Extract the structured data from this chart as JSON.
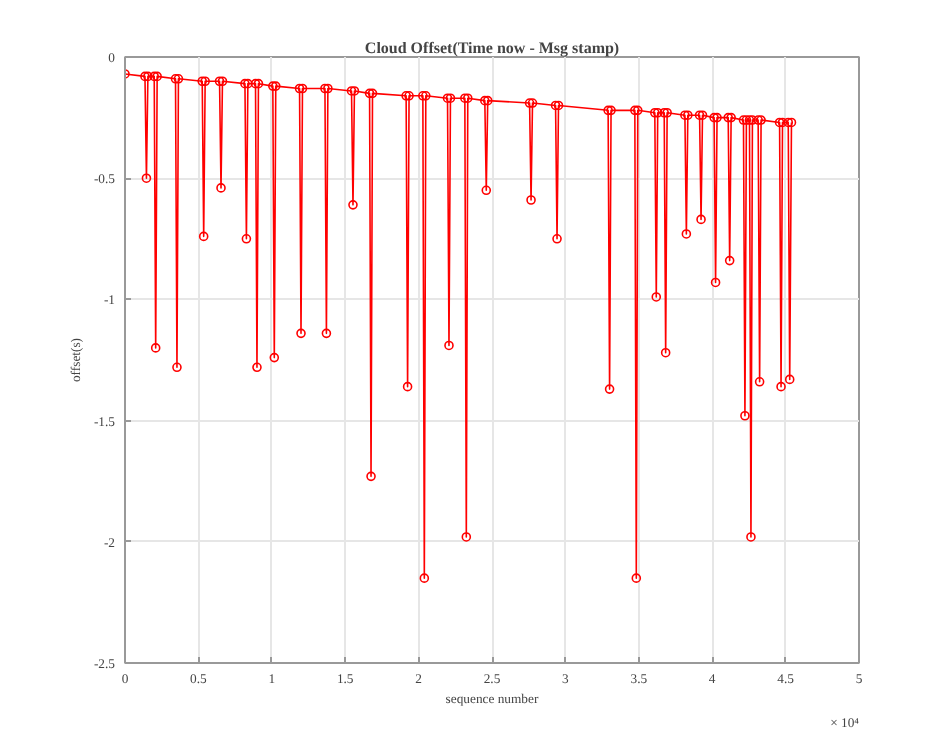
{
  "chart_data": {
    "type": "line",
    "title": "Cloud Offset(Time now - Msg stamp)",
    "xlabel": "sequence number",
    "ylabel": "offset(s)",
    "annotations": [
      "× 10⁴"
    ],
    "x": [
      0,
      0.136,
      0.146,
      0.156,
      0.199,
      0.209,
      0.219,
      0.344,
      0.354,
      0.364,
      0.526,
      0.536,
      0.546,
      0.644,
      0.654,
      0.664,
      0.817,
      0.827,
      0.837,
      0.889,
      0.899,
      0.909,
      1.007,
      1.017,
      1.027,
      1.189,
      1.199,
      1.209,
      1.362,
      1.372,
      1.382,
      1.543,
      1.553,
      1.563,
      1.666,
      1.676,
      1.686,
      1.915,
      1.925,
      1.935,
      2.029,
      2.039,
      2.049,
      2.197,
      2.207,
      2.217,
      2.315,
      2.325,
      2.335,
      2.451,
      2.461,
      2.471,
      2.756,
      2.766,
      2.776,
      2.933,
      2.943,
      2.953,
      3.291,
      3.301,
      3.311,
      3.473,
      3.483,
      3.493,
      3.609,
      3.619,
      3.629,
      3.673,
      3.683,
      3.693,
      3.814,
      3.824,
      3.834,
      3.914,
      3.924,
      3.934,
      4.013,
      4.023,
      4.033,
      4.109,
      4.119,
      4.129,
      4.213,
      4.223,
      4.233,
      4.254,
      4.264,
      4.274,
      4.313,
      4.323,
      4.333,
      4.459,
      4.469,
      4.479,
      4.518,
      4.528,
      4.54
    ],
    "series": [
      {
        "color": "#ff0000",
        "values": [
          -0.07,
          -0.08,
          -0.5,
          -0.08,
          -0.08,
          -1.2,
          -0.08,
          -0.09,
          -1.28,
          -0.09,
          -0.1,
          -0.74,
          -0.1,
          -0.1,
          -0.54,
          -0.1,
          -0.11,
          -0.75,
          -0.11,
          -0.11,
          -1.28,
          -0.11,
          -0.12,
          -1.24,
          -0.12,
          -0.13,
          -1.14,
          -0.13,
          -0.13,
          -1.14,
          -0.13,
          -0.14,
          -0.61,
          -0.14,
          -0.15,
          -1.73,
          -0.15,
          -0.16,
          -1.36,
          -0.16,
          -0.16,
          -2.15,
          -0.16,
          -0.17,
          -1.19,
          -0.17,
          -0.17,
          -1.98,
          -0.17,
          -0.18,
          -0.55,
          -0.18,
          -0.19,
          -0.59,
          -0.19,
          -0.2,
          -0.75,
          -0.2,
          -0.22,
          -1.37,
          -0.22,
          -0.22,
          -2.15,
          -0.22,
          -0.23,
          -0.99,
          -0.23,
          -0.23,
          -1.22,
          -0.23,
          -0.24,
          -0.73,
          -0.24,
          -0.24,
          -0.67,
          -0.24,
          -0.25,
          -0.93,
          -0.25,
          -0.25,
          -0.84,
          -0.25,
          -0.26,
          -1.48,
          -0.26,
          -0.26,
          -1.98,
          -0.26,
          -0.26,
          -1.34,
          -0.26,
          -0.27,
          -1.36,
          -0.27,
          -0.27,
          -1.33,
          -0.27
        ]
      }
    ],
    "xlim": [
      0,
      5
    ],
    "xticks": [
      0,
      0.5,
      1,
      1.5,
      2,
      2.5,
      3,
      3.5,
      4,
      4.5,
      5
    ],
    "ylim": [
      -2.5,
      0
    ],
    "yticks": [
      -2.5,
      -2,
      -1.5,
      -1,
      -0.5,
      0
    ],
    "grid": true,
    "marker": "circle",
    "line_style": "solid"
  }
}
